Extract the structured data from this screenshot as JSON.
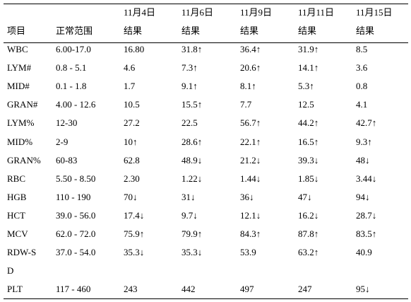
{
  "header": {
    "col_item": "项目",
    "col_range": "正常范围",
    "dates": [
      "11月4日",
      "11月6日",
      "11月9日",
      "11月11日",
      "11月15日"
    ],
    "result_label": "结果"
  },
  "rows": [
    {
      "item": "WBC",
      "range": "6.00-17.0",
      "values": [
        "16.80",
        "31.8↑",
        "36.4↑",
        "31.9↑",
        "8.5"
      ]
    },
    {
      "item": "LYM#",
      "range": "0.8 - 5.1",
      "values": [
        "4.6",
        "7.3↑",
        "20.6↑",
        "14.1↑",
        "3.6"
      ]
    },
    {
      "item": "MID#",
      "range": "0.1 - 1.8",
      "values": [
        "1.7",
        "9.1↑",
        "8.1↑",
        "5.3↑",
        "0.8"
      ]
    },
    {
      "item": "GRAN#",
      "range": "4.00 - 12.6",
      "values": [
        "10.5",
        "15.5↑",
        "7.7",
        "12.5",
        "4.1"
      ]
    },
    {
      "item": "LYM%",
      "range": "12-30",
      "values": [
        "27.2",
        "22.5",
        "56.7↑",
        "44.2↑",
        "42.7↑"
      ]
    },
    {
      "item": "MID%",
      "range": "2-9",
      "values": [
        "10↑",
        "28.6↑",
        "22.1↑",
        "16.5↑",
        "9.3↑"
      ]
    },
    {
      "item": "GRAN%",
      "range": "60-83",
      "values": [
        "62.8",
        "48.9↓",
        "21.2↓",
        "39.3↓",
        "48↓"
      ]
    },
    {
      "item": "RBC",
      "range": "5.50 - 8.50",
      "values": [
        "2.30",
        "1.22↓",
        "1.44↓",
        "1.85↓",
        "3.44↓"
      ]
    },
    {
      "item": "HGB",
      "range": "110 - 190",
      "values": [
        "70↓",
        "31↓",
        "36↓",
        "47↓",
        "94↓"
      ]
    },
    {
      "item": "HCT",
      "range": "39.0 - 56.0",
      "values": [
        "17.4↓",
        "9.7↓",
        "12.1↓",
        "16.2↓",
        "28.7↓"
      ]
    },
    {
      "item": "MCV",
      "range": "62.0 - 72.0",
      "values": [
        "75.9↑",
        "79.9↑",
        "84.3↑",
        "87.8↑",
        "83.5↑"
      ]
    },
    {
      "item": "RDW-S",
      "item_wrap": "D",
      "range": "37.0 - 54.0",
      "values": [
        "35.3↓",
        "35.3↓",
        "53.9",
        "63.2↑",
        "40.9"
      ]
    },
    {
      "item": "PLT",
      "range": "117 - 460",
      "values": [
        "243",
        "442",
        "497",
        "247",
        "95↓"
      ]
    }
  ]
}
